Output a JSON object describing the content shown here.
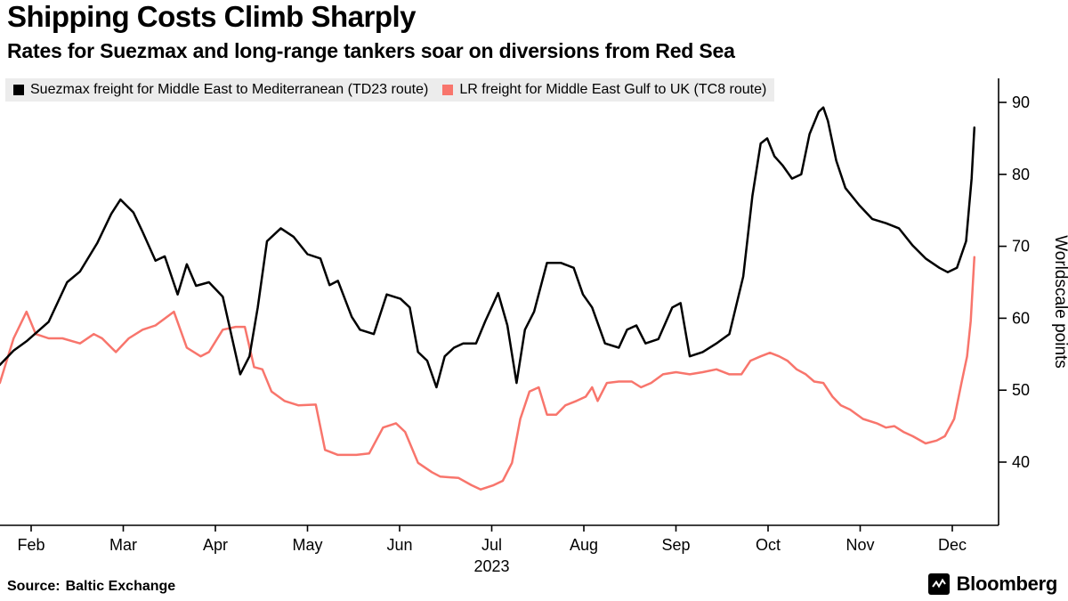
{
  "chart_data": {
    "type": "line",
    "title": "Shipping Costs Climb Sharply",
    "subtitle": "Rates for Suezmax and long-range tankers soar on diversions from Red Sea",
    "ylabel": "Worldscale points",
    "year_label": "2023",
    "grid": false,
    "legend_position": "top",
    "ylim": [
      31,
      93
    ],
    "yticks": [
      40,
      50,
      60,
      70,
      80,
      90
    ],
    "x_unit": "month index, Jan 1 2023 = 0, fractional = position within month",
    "xticks": [
      {
        "x": 1,
        "label": "Feb"
      },
      {
        "x": 2,
        "label": "Mar"
      },
      {
        "x": 3,
        "label": "Apr"
      },
      {
        "x": 4,
        "label": "May"
      },
      {
        "x": 5,
        "label": "Jun"
      },
      {
        "x": 6,
        "label": "Jul"
      },
      {
        "x": 7,
        "label": "Aug"
      },
      {
        "x": 8,
        "label": "Sep"
      },
      {
        "x": 9,
        "label": "Oct"
      },
      {
        "x": 10,
        "label": "Nov"
      },
      {
        "x": 11,
        "label": "Dec"
      }
    ],
    "series": [
      {
        "name": "Suezmax freight for Middle East to Mediterranean (TD23 route)",
        "color": "#000000",
        "points": [
          [
            0.66,
            53.5
          ],
          [
            0.81,
            55.5
          ],
          [
            0.95,
            56.8
          ],
          [
            1.19,
            59.5
          ],
          [
            1.39,
            65.0
          ],
          [
            1.53,
            66.5
          ],
          [
            1.72,
            70.5
          ],
          [
            1.87,
            74.5
          ],
          [
            1.97,
            76.5
          ],
          [
            2.11,
            74.7
          ],
          [
            2.21,
            72.0
          ],
          [
            2.35,
            68.0
          ],
          [
            2.45,
            68.6
          ],
          [
            2.59,
            63.3
          ],
          [
            2.69,
            67.5
          ],
          [
            2.79,
            64.5
          ],
          [
            2.93,
            65.0
          ],
          [
            3.08,
            63.0
          ],
          [
            3.27,
            52.2
          ],
          [
            3.37,
            54.7
          ],
          [
            3.46,
            61.5
          ],
          [
            3.56,
            70.7
          ],
          [
            3.71,
            72.5
          ],
          [
            3.85,
            71.3
          ],
          [
            4.0,
            68.9
          ],
          [
            4.14,
            68.3
          ],
          [
            4.24,
            64.6
          ],
          [
            4.33,
            65.2
          ],
          [
            4.48,
            60.2
          ],
          [
            4.57,
            58.4
          ],
          [
            4.72,
            57.8
          ],
          [
            4.86,
            63.3
          ],
          [
            5.01,
            62.7
          ],
          [
            5.11,
            61.5
          ],
          [
            5.2,
            55.3
          ],
          [
            5.3,
            54.1
          ],
          [
            5.4,
            50.4
          ],
          [
            5.49,
            54.7
          ],
          [
            5.59,
            55.9
          ],
          [
            5.69,
            56.5
          ],
          [
            5.83,
            56.5
          ],
          [
            5.93,
            59.6
          ],
          [
            6.02,
            62.1
          ],
          [
            6.07,
            63.5
          ],
          [
            6.17,
            59.0
          ],
          [
            6.27,
            51.0
          ],
          [
            6.36,
            58.4
          ],
          [
            6.46,
            60.9
          ],
          [
            6.6,
            67.7
          ],
          [
            6.75,
            67.7
          ],
          [
            6.89,
            67.0
          ],
          [
            6.99,
            63.3
          ],
          [
            7.09,
            61.5
          ],
          [
            7.23,
            56.5
          ],
          [
            7.38,
            55.9
          ],
          [
            7.47,
            58.4
          ],
          [
            7.57,
            59.0
          ],
          [
            7.67,
            56.5
          ],
          [
            7.81,
            57.1
          ],
          [
            7.96,
            61.5
          ],
          [
            8.05,
            62.1
          ],
          [
            8.15,
            54.7
          ],
          [
            8.29,
            55.3
          ],
          [
            8.44,
            56.5
          ],
          [
            8.58,
            57.8
          ],
          [
            8.73,
            65.8
          ],
          [
            8.83,
            77.0
          ],
          [
            8.92,
            84.3
          ],
          [
            8.99,
            85.0
          ],
          [
            9.07,
            82.5
          ],
          [
            9.16,
            81.2
          ],
          [
            9.26,
            79.4
          ],
          [
            9.36,
            80.0
          ],
          [
            9.45,
            85.6
          ],
          [
            9.55,
            88.7
          ],
          [
            9.6,
            89.3
          ],
          [
            9.65,
            87.4
          ],
          [
            9.74,
            81.9
          ],
          [
            9.84,
            78.1
          ],
          [
            9.99,
            75.7
          ],
          [
            10.13,
            73.8
          ],
          [
            10.28,
            73.2
          ],
          [
            10.42,
            72.5
          ],
          [
            10.57,
            70.1
          ],
          [
            10.71,
            68.3
          ],
          [
            10.86,
            67.0
          ],
          [
            10.95,
            66.4
          ],
          [
            11.05,
            67.0
          ],
          [
            11.15,
            70.7
          ],
          [
            11.21,
            79.4
          ],
          [
            11.24,
            86.5
          ]
        ]
      },
      {
        "name": "LR freight for Middle East Gulf to UK (TC8 route)",
        "color": "#f8756c",
        "points": [
          [
            0.66,
            51.0
          ],
          [
            0.81,
            57.2
          ],
          [
            0.95,
            60.9
          ],
          [
            1.05,
            57.8
          ],
          [
            1.19,
            57.2
          ],
          [
            1.34,
            57.2
          ],
          [
            1.53,
            56.5
          ],
          [
            1.68,
            57.8
          ],
          [
            1.77,
            57.2
          ],
          [
            1.92,
            55.3
          ],
          [
            2.06,
            57.2
          ],
          [
            2.21,
            58.4
          ],
          [
            2.35,
            59.0
          ],
          [
            2.55,
            60.9
          ],
          [
            2.69,
            55.9
          ],
          [
            2.84,
            54.7
          ],
          [
            2.93,
            55.3
          ],
          [
            3.08,
            58.4
          ],
          [
            3.22,
            58.8
          ],
          [
            3.32,
            58.8
          ],
          [
            3.42,
            53.2
          ],
          [
            3.51,
            52.9
          ],
          [
            3.61,
            49.8
          ],
          [
            3.75,
            48.5
          ],
          [
            3.9,
            47.9
          ],
          [
            4.09,
            48.0
          ],
          [
            4.19,
            41.7
          ],
          [
            4.33,
            41.0
          ],
          [
            4.53,
            41.0
          ],
          [
            4.67,
            41.2
          ],
          [
            4.82,
            44.8
          ],
          [
            4.96,
            45.4
          ],
          [
            5.06,
            44.2
          ],
          [
            5.2,
            39.9
          ],
          [
            5.35,
            38.6
          ],
          [
            5.44,
            38.0
          ],
          [
            5.64,
            37.8
          ],
          [
            5.78,
            36.8
          ],
          [
            5.88,
            36.2
          ],
          [
            6.02,
            36.8
          ],
          [
            6.12,
            37.4
          ],
          [
            6.22,
            39.9
          ],
          [
            6.31,
            46.0
          ],
          [
            6.41,
            49.8
          ],
          [
            6.51,
            50.4
          ],
          [
            6.6,
            46.6
          ],
          [
            6.7,
            46.6
          ],
          [
            6.8,
            47.9
          ],
          [
            6.92,
            48.5
          ],
          [
            7.02,
            49.1
          ],
          [
            7.09,
            50.4
          ],
          [
            7.15,
            48.5
          ],
          [
            7.25,
            51.0
          ],
          [
            7.38,
            51.2
          ],
          [
            7.52,
            51.2
          ],
          [
            7.62,
            50.4
          ],
          [
            7.73,
            51.0
          ],
          [
            7.86,
            52.2
          ],
          [
            8.0,
            52.5
          ],
          [
            8.15,
            52.2
          ],
          [
            8.29,
            52.5
          ],
          [
            8.44,
            52.9
          ],
          [
            8.58,
            52.2
          ],
          [
            8.71,
            52.2
          ],
          [
            8.81,
            54.1
          ],
          [
            8.92,
            54.7
          ],
          [
            9.02,
            55.2
          ],
          [
            9.12,
            54.7
          ],
          [
            9.21,
            54.1
          ],
          [
            9.31,
            52.9
          ],
          [
            9.41,
            52.2
          ],
          [
            9.5,
            51.2
          ],
          [
            9.6,
            51.0
          ],
          [
            9.7,
            49.1
          ],
          [
            9.79,
            47.9
          ],
          [
            9.89,
            47.3
          ],
          [
            10.03,
            46.0
          ],
          [
            10.18,
            45.4
          ],
          [
            10.28,
            44.8
          ],
          [
            10.37,
            45.0
          ],
          [
            10.47,
            44.2
          ],
          [
            10.57,
            43.6
          ],
          [
            10.71,
            42.6
          ],
          [
            10.83,
            43.0
          ],
          [
            10.92,
            43.6
          ],
          [
            11.02,
            46.0
          ],
          [
            11.1,
            51.0
          ],
          [
            11.16,
            54.7
          ],
          [
            11.2,
            59.6
          ],
          [
            11.24,
            68.5
          ]
        ]
      }
    ]
  },
  "footer": {
    "source_label": "Source:",
    "source_value": "Baltic Exchange",
    "brand": "Bloomberg"
  }
}
